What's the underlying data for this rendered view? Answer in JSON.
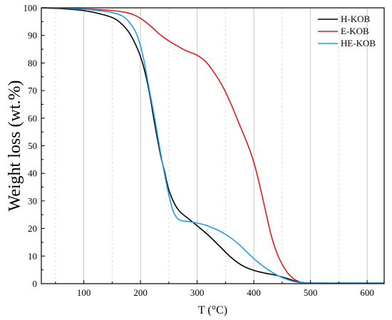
{
  "chart_data": {
    "type": "line",
    "xlabel": "T (°C)",
    "ylabel": "Weight loss (wt.%)",
    "xlim": [
      25,
      630
    ],
    "ylim": [
      0,
      100
    ],
    "x_ticks": [
      100,
      200,
      300,
      400,
      500,
      600
    ],
    "y_ticks": [
      0,
      10,
      20,
      30,
      40,
      50,
      60,
      70,
      80,
      90,
      100
    ],
    "grid": "vertical dashed",
    "legend_position": "top-right",
    "series": [
      {
        "name": "H-KOB",
        "color": "#000000",
        "points": [
          [
            25,
            100
          ],
          [
            50,
            99.8
          ],
          [
            75,
            99.5
          ],
          [
            100,
            99
          ],
          [
            125,
            98
          ],
          [
            150,
            96.5
          ],
          [
            165,
            94.5
          ],
          [
            180,
            91
          ],
          [
            195,
            85
          ],
          [
            205,
            79
          ],
          [
            215,
            70
          ],
          [
            225,
            58
          ],
          [
            235,
            47
          ],
          [
            242,
            41
          ],
          [
            250,
            34
          ],
          [
            260,
            29
          ],
          [
            270,
            26
          ],
          [
            285,
            23.5
          ],
          [
            300,
            21
          ],
          [
            320,
            17.5
          ],
          [
            340,
            13.5
          ],
          [
            360,
            9.5
          ],
          [
            380,
            6.5
          ],
          [
            400,
            4.8
          ],
          [
            420,
            3.8
          ],
          [
            440,
            3
          ],
          [
            460,
            1.8
          ],
          [
            475,
            0.8
          ],
          [
            490,
            0.3
          ],
          [
            510,
            0.2
          ],
          [
            550,
            0.2
          ],
          [
            600,
            0.2
          ],
          [
            630,
            0.2
          ]
        ]
      },
      {
        "name": "E-KOB",
        "color": "#e31a1c",
        "points": [
          [
            25,
            100
          ],
          [
            50,
            99.9
          ],
          [
            100,
            99.6
          ],
          [
            150,
            99
          ],
          [
            175,
            98.3
          ],
          [
            190,
            97.3
          ],
          [
            205,
            95.5
          ],
          [
            220,
            93
          ],
          [
            235,
            90.2
          ],
          [
            250,
            88
          ],
          [
            265,
            86.2
          ],
          [
            280,
            84.5
          ],
          [
            300,
            82.8
          ],
          [
            315,
            80.5
          ],
          [
            330,
            76.5
          ],
          [
            345,
            71.5
          ],
          [
            360,
            65
          ],
          [
            375,
            57.5
          ],
          [
            390,
            50
          ],
          [
            400,
            44
          ],
          [
            410,
            36
          ],
          [
            420,
            27
          ],
          [
            430,
            18
          ],
          [
            440,
            11.5
          ],
          [
            450,
            7
          ],
          [
            460,
            3.8
          ],
          [
            470,
            1.8
          ],
          [
            480,
            0.7
          ],
          [
            490,
            0.3
          ],
          [
            520,
            0.2
          ],
          [
            560,
            0.2
          ],
          [
            600,
            0.2
          ],
          [
            630,
            0.2
          ]
        ]
      },
      {
        "name": "HE-KOB",
        "color": "#1f9ee6",
        "points": [
          [
            25,
            100
          ],
          [
            50,
            99.9
          ],
          [
            75,
            99.8
          ],
          [
            100,
            99.5
          ],
          [
            125,
            99
          ],
          [
            150,
            98.3
          ],
          [
            170,
            96.8
          ],
          [
            185,
            93.5
          ],
          [
            195,
            89.5
          ],
          [
            205,
            82
          ],
          [
            215,
            71
          ],
          [
            225,
            60
          ],
          [
            235,
            48
          ],
          [
            245,
            37
          ],
          [
            255,
            28
          ],
          [
            262,
            24.5
          ],
          [
            270,
            23
          ],
          [
            285,
            22.5
          ],
          [
            300,
            22
          ],
          [
            315,
            21.2
          ],
          [
            330,
            20
          ],
          [
            345,
            18.5
          ],
          [
            360,
            16.5
          ],
          [
            375,
            14
          ],
          [
            390,
            11
          ],
          [
            405,
            8.2
          ],
          [
            420,
            5.8
          ],
          [
            440,
            3.2
          ],
          [
            455,
            1.8
          ],
          [
            470,
            0.8
          ],
          [
            485,
            0.3
          ],
          [
            520,
            0.2
          ],
          [
            560,
            0.2
          ],
          [
            630,
            0.2
          ]
        ]
      }
    ]
  }
}
